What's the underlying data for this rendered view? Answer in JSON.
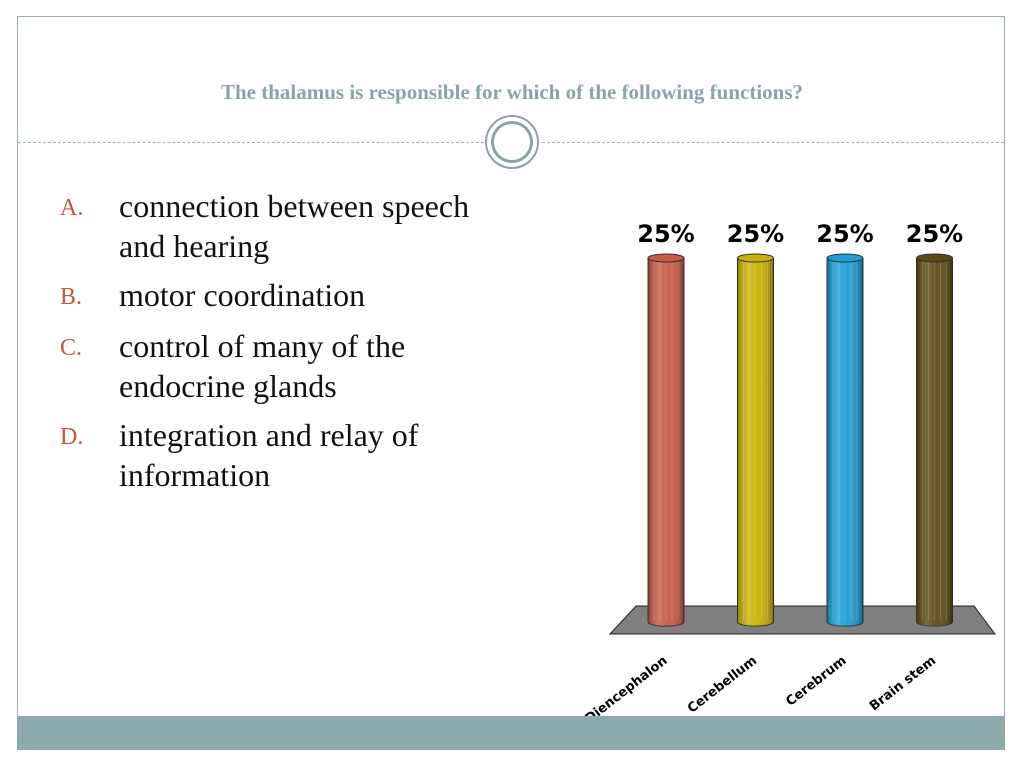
{
  "slide": {
    "title": "The thalamus is responsible for which of the following functions?",
    "options": [
      {
        "letter": "A.",
        "text": "connection between speech and hearing"
      },
      {
        "letter": "B.",
        "text": "motor coordination"
      },
      {
        "letter": "C.",
        "text": "control of many of the endocrine glands"
      },
      {
        "letter": "D.",
        "text": "integration and relay of information"
      }
    ]
  },
  "colors": {
    "accent": "#8ca9ab",
    "option_letter": "#c0593f"
  },
  "chart_data": {
    "type": "bar",
    "categories": [
      "Diencephalon",
      "Cerebellum",
      "Cerebrum",
      "Brain stem"
    ],
    "values": [
      25,
      25,
      25,
      25
    ],
    "data_labels": [
      "25%",
      "25%",
      "25%",
      "25%"
    ],
    "colors": [
      "#c85a45",
      "#c9b200",
      "#1a9fd6",
      "#5e4a10"
    ],
    "title": "",
    "xlabel": "",
    "ylabel": "",
    "ylim": [
      0,
      25
    ],
    "grid": false,
    "legend": "none"
  }
}
